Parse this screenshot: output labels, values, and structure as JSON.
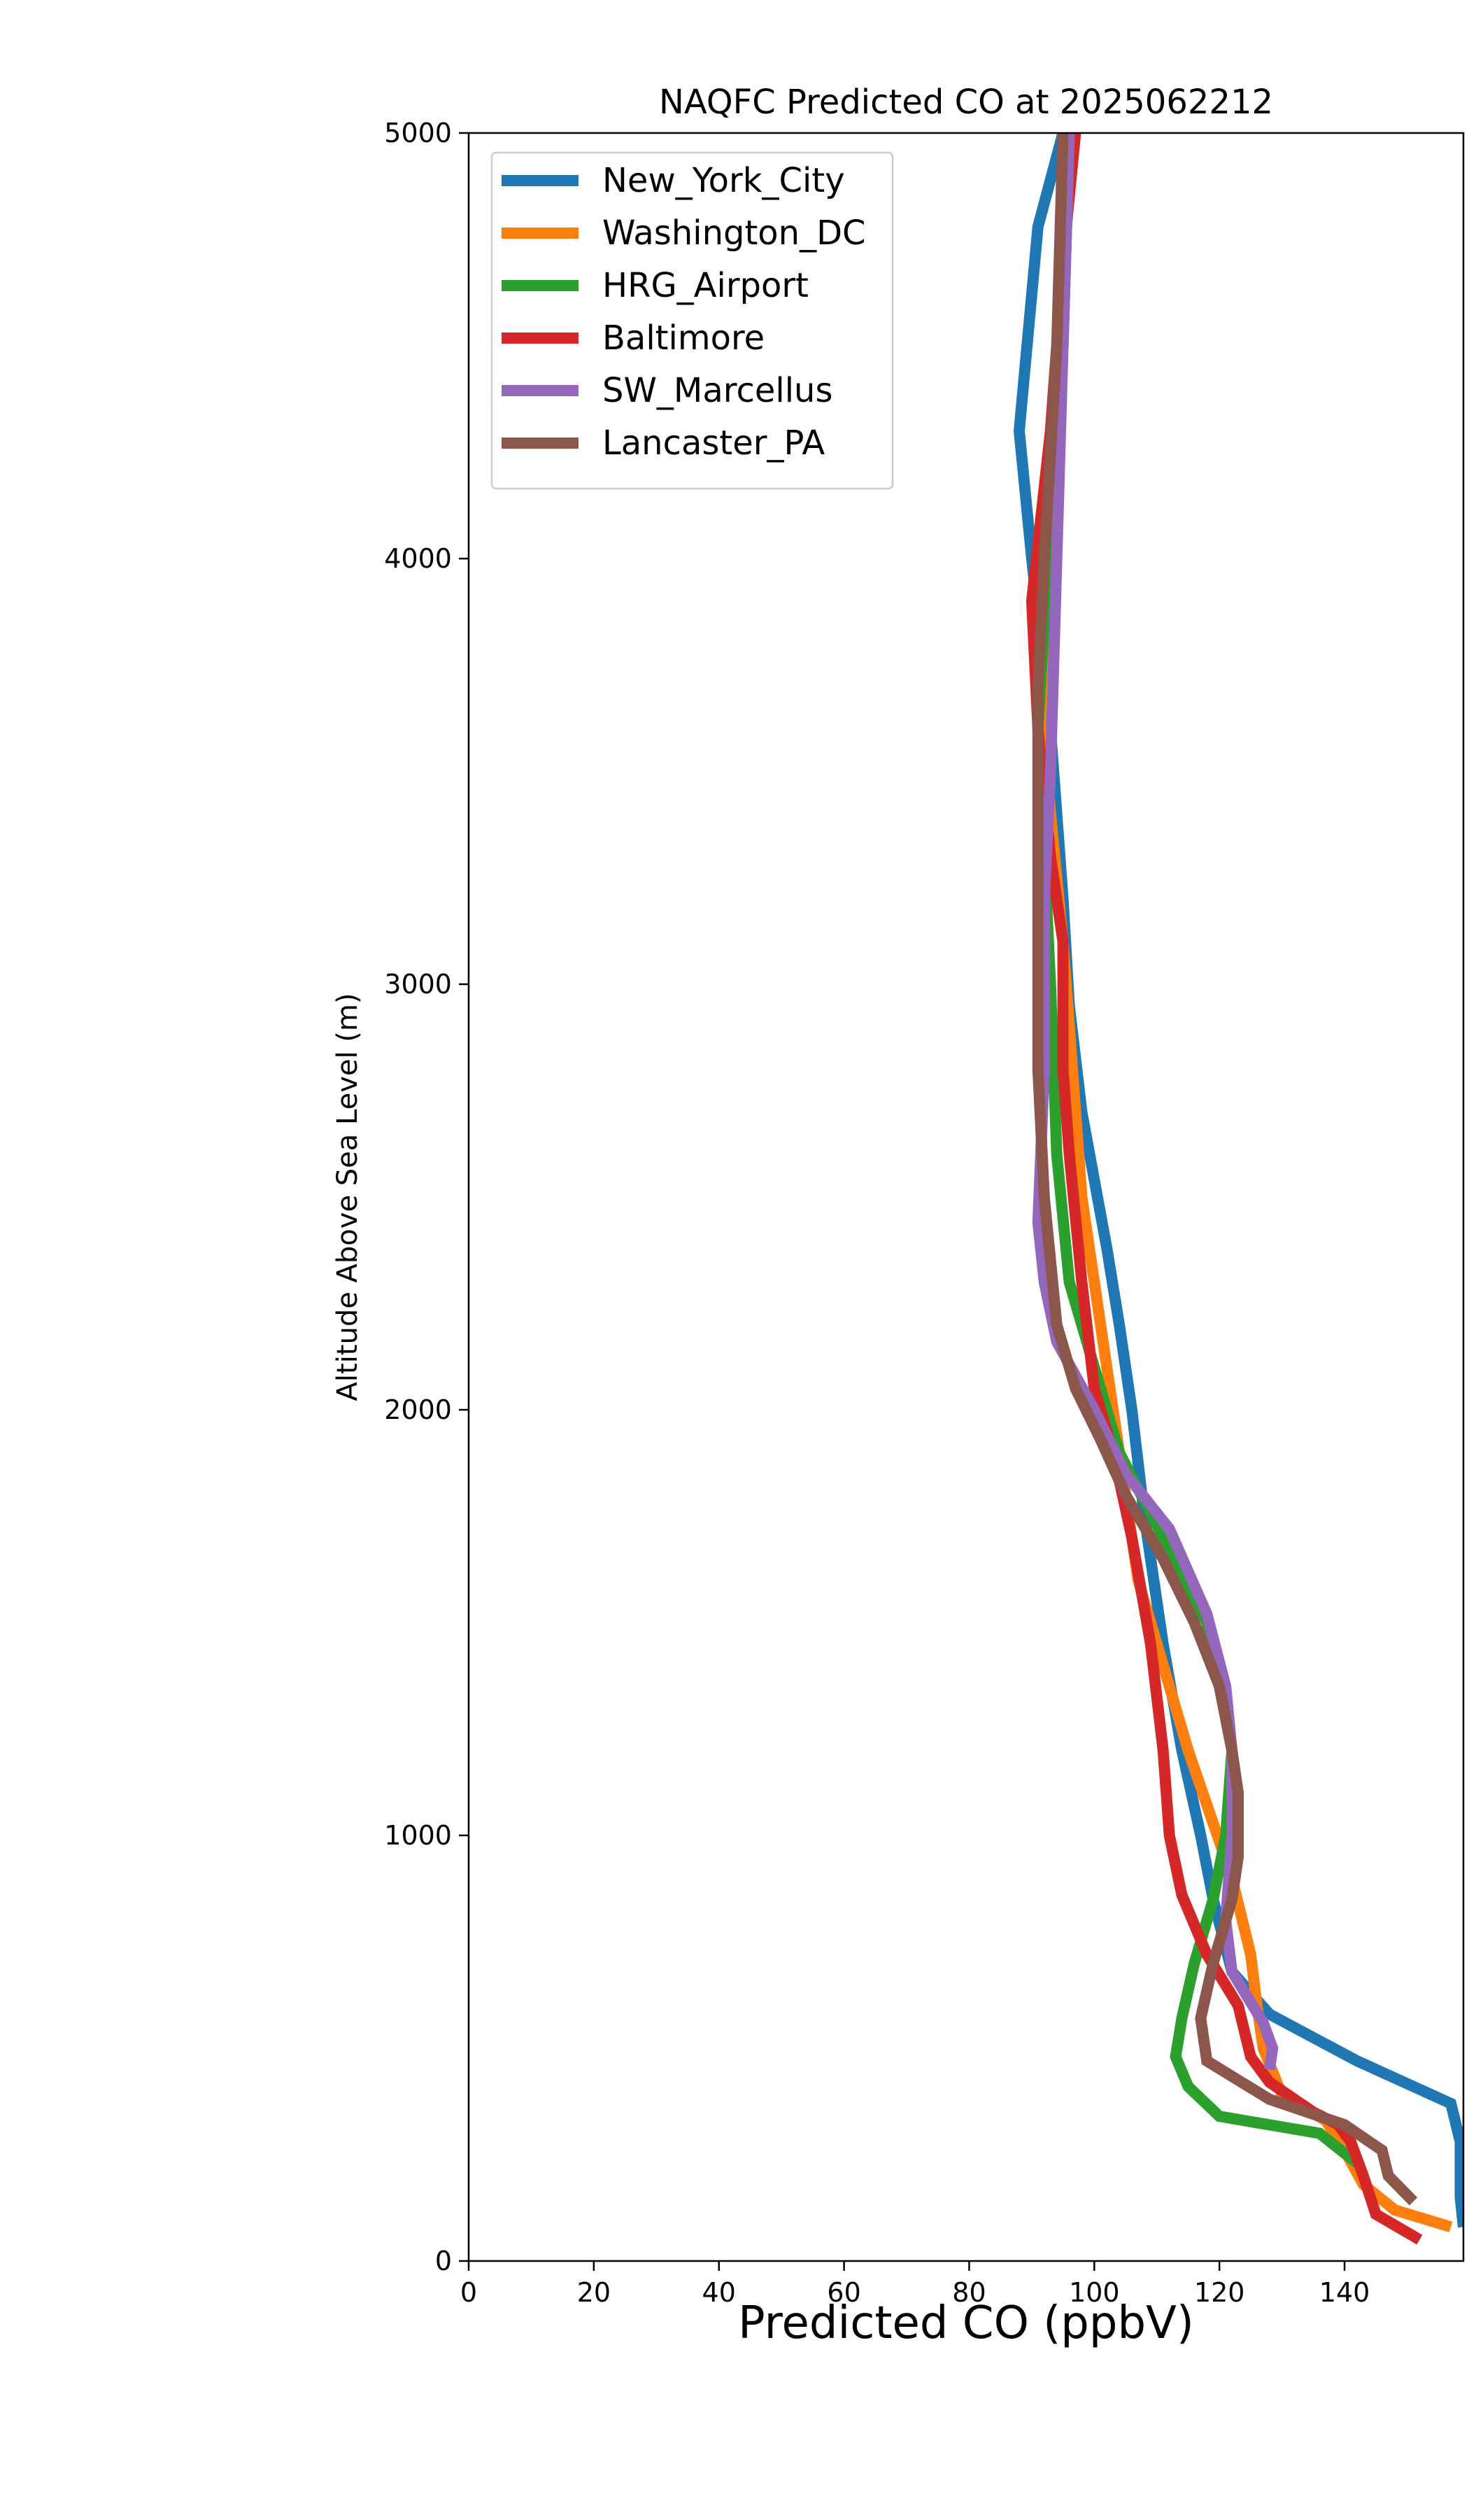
{
  "chart_data": {
    "type": "line",
    "title": "NAQFC Predicted CO at 2025062212",
    "xlabel": "Predicted CO (ppbV)",
    "ylabel": "Altitude Above Sea Level (m)",
    "xlim": [
      0,
      159
    ],
    "ylim": [
      0,
      5000
    ],
    "xticks": [
      0,
      20,
      40,
      60,
      80,
      100,
      120,
      140
    ],
    "yticks": [
      0,
      1000,
      2000,
      3000,
      4000,
      5000
    ],
    "grid": false,
    "legend_position": "upper-left",
    "series": [
      {
        "name": "New_York_City",
        "color": "#1f77b4",
        "points": [
          [
            159,
            80
          ],
          [
            158.5,
            150
          ],
          [
            158.5,
            280
          ],
          [
            157,
            370
          ],
          [
            142,
            470
          ],
          [
            128,
            580
          ],
          [
            122,
            680
          ],
          [
            119,
            850
          ],
          [
            117,
            1000
          ],
          [
            114,
            1200
          ],
          [
            111,
            1450
          ],
          [
            108,
            1750
          ],
          [
            106,
            2000
          ],
          [
            104,
            2200
          ],
          [
            102,
            2380
          ],
          [
            98,
            2700
          ],
          [
            96,
            2950
          ],
          [
            95,
            3200
          ],
          [
            93,
            3600
          ],
          [
            90,
            4000
          ],
          [
            88,
            4300
          ],
          [
            91,
            4780
          ],
          [
            95,
            5000
          ]
        ]
      },
      {
        "name": "Washington_DC",
        "color": "#ff7f0e",
        "points": [
          [
            157,
            80
          ],
          [
            148,
            120
          ],
          [
            143,
            180
          ],
          [
            140,
            260
          ],
          [
            137,
            330
          ],
          [
            130,
            390
          ],
          [
            127,
            500
          ],
          [
            126,
            600
          ],
          [
            125,
            720
          ],
          [
            122,
            900
          ],
          [
            115,
            1200
          ],
          [
            110,
            1450
          ],
          [
            107,
            1600
          ],
          [
            105,
            1800
          ],
          [
            102,
            2100
          ],
          [
            98,
            2500
          ],
          [
            96,
            2900
          ],
          [
            95,
            3100
          ],
          [
            93,
            3400
          ],
          [
            92,
            3600
          ],
          [
            93,
            4000
          ],
          [
            95,
            4500
          ],
          [
            96,
            5000
          ]
        ]
      },
      {
        "name": "HRG_Airport",
        "color": "#2ca02c",
        "points": [
          [
            142,
            230
          ],
          [
            136,
            300
          ],
          [
            120,
            340
          ],
          [
            115,
            410
          ],
          [
            113,
            480
          ],
          [
            114,
            570
          ],
          [
            116,
            700
          ],
          [
            119,
            850
          ],
          [
            121,
            1000
          ],
          [
            122,
            1200
          ],
          [
            118,
            1500
          ],
          [
            111,
            1700
          ],
          [
            104,
            1900
          ],
          [
            100,
            2100
          ],
          [
            96,
            2300
          ],
          [
            94,
            2600
          ],
          [
            93,
            3000
          ],
          [
            92,
            3300
          ],
          [
            91,
            3600
          ],
          [
            93,
            4100
          ],
          [
            95,
            4500
          ],
          [
            96,
            5000
          ]
        ]
      },
      {
        "name": "Baltimore",
        "color": "#d62728",
        "points": [
          [
            152,
            50
          ],
          [
            145,
            110
          ],
          [
            143,
            200
          ],
          [
            141,
            280
          ],
          [
            139,
            320
          ],
          [
            135,
            350
          ],
          [
            128,
            420
          ],
          [
            125,
            480
          ],
          [
            123,
            600
          ],
          [
            118,
            720
          ],
          [
            114,
            860
          ],
          [
            112,
            1000
          ],
          [
            111,
            1200
          ],
          [
            109,
            1450
          ],
          [
            106,
            1700
          ],
          [
            103,
            1900
          ],
          [
            100,
            2050
          ],
          [
            98,
            2300
          ],
          [
            96,
            2600
          ],
          [
            95,
            2800
          ],
          [
            95,
            3100
          ],
          [
            93,
            3300
          ],
          [
            91,
            3600
          ],
          [
            90,
            3900
          ],
          [
            93,
            4300
          ],
          [
            95,
            4700
          ],
          [
            97,
            5000
          ]
        ]
      },
      {
        "name": "SW_Marcellus",
        "color": "#9467bd",
        "points": [
          [
            128,
            450
          ],
          [
            128.5,
            500
          ],
          [
            127,
            560
          ],
          [
            122,
            680
          ],
          [
            121,
            800
          ],
          [
            122,
            1000
          ],
          [
            122,
            1200
          ],
          [
            121,
            1350
          ],
          [
            118,
            1520
          ],
          [
            112,
            1720
          ],
          [
            105,
            1850
          ],
          [
            100,
            2000
          ],
          [
            94,
            2160
          ],
          [
            92,
            2300
          ],
          [
            91,
            2440
          ],
          [
            92,
            2800
          ],
          [
            92,
            3200
          ],
          [
            93,
            3500
          ],
          [
            94,
            4000
          ],
          [
            95,
            4500
          ],
          [
            96,
            5000
          ]
        ]
      },
      {
        "name": "Lancaster_PA",
        "color": "#8c564b",
        "points": [
          [
            151,
            140
          ],
          [
            147,
            200
          ],
          [
            146,
            260
          ],
          [
            140,
            320
          ],
          [
            128,
            380
          ],
          [
            118,
            470
          ],
          [
            117,
            570
          ],
          [
            119,
            700
          ],
          [
            122,
            850
          ],
          [
            123,
            950
          ],
          [
            123,
            1100
          ],
          [
            122,
            1200
          ],
          [
            120,
            1350
          ],
          [
            116,
            1500
          ],
          [
            111,
            1650
          ],
          [
            105,
            1800
          ],
          [
            101,
            1930
          ],
          [
            97,
            2050
          ],
          [
            94,
            2200
          ],
          [
            92,
            2500
          ],
          [
            91,
            2800
          ],
          [
            91,
            3300
          ],
          [
            91,
            3700
          ],
          [
            92,
            4000
          ],
          [
            94,
            4500
          ],
          [
            95,
            5000
          ]
        ]
      }
    ]
  }
}
